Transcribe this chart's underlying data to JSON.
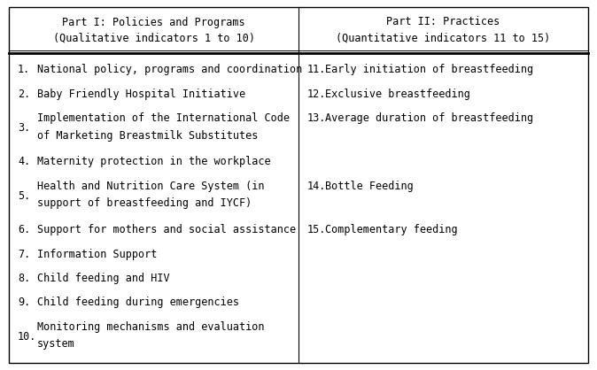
{
  "col1_header_line1": "Part I: Policies and Programs",
  "col1_header_line2": "(Qualitative indicators 1 to 10)",
  "col2_header_line1": "Part II: Practices",
  "col2_header_line2": "(Quantitative indicators 11 to 15)",
  "col1_items": [
    {
      "num": "1.",
      "text": "National policy, programs and coordination",
      "lines": 1
    },
    {
      "num": "2.",
      "text": "Baby Friendly Hospital Initiative",
      "lines": 1
    },
    {
      "num": "3.",
      "text_l1": "Implementation of the International Code",
      "text_l2": "of Marketing Breastmilk Substitutes",
      "lines": 2
    },
    {
      "num": "4.",
      "text": "Maternity protection in the workplace",
      "lines": 1
    },
    {
      "num": "5.",
      "text_l1": "Health and Nutrition Care System (in",
      "text_l2": "support of breastfeeding and IYCF)",
      "lines": 2
    },
    {
      "num": "6.",
      "text": "Support for mothers and social assistance",
      "lines": 1
    },
    {
      "num": "7.",
      "text": "Information Support",
      "lines": 1
    },
    {
      "num": "8.",
      "text": "Child feeding and HIV",
      "lines": 1
    },
    {
      "num": "9.",
      "text": "Child feeding during emergencies",
      "lines": 1
    },
    {
      "num": "10.",
      "text_l1": "Monitoring mechanisms and evaluation",
      "text_l2": "system",
      "lines": 2
    }
  ],
  "col2_items": [
    {
      "num": "11.",
      "text": "Early initiation of breastfeeding",
      "align_to": 0
    },
    {
      "num": "12.",
      "text": "Exclusive breastfeeding",
      "align_to": 1
    },
    {
      "num": "13.",
      "text": "Average duration of breastfeeding",
      "align_to": 2
    },
    {
      "num": "14.",
      "text": "Bottle Feeding",
      "align_to": 4
    },
    {
      "num": "15.",
      "text": "Complementary feeding",
      "align_to": 5
    }
  ],
  "bg_color": "#ffffff",
  "text_color": "#000000",
  "border_color": "#000000",
  "font_size": 8.5,
  "header_font_size": 8.5,
  "font_family": "monospace"
}
